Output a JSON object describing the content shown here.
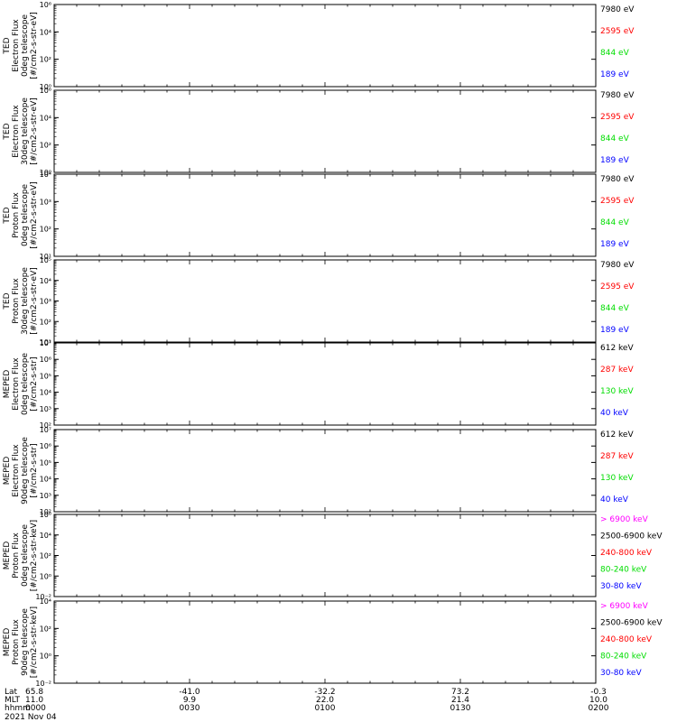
{
  "chart_data": {
    "type": "line",
    "y_scale": "log",
    "date": "2021 Nov 04",
    "time_ticks": [
      "0000",
      "0030",
      "0100",
      "0130",
      "0200"
    ],
    "ephemeris": {
      "row_labels": [
        "Lat",
        "MLT",
        "hhmm"
      ],
      "lat": [
        "65.8",
        "-41.0",
        "-32.2",
        "73.2",
        "-0.3"
      ],
      "mlt": [
        "11.0",
        "9.9",
        "22.0",
        "21.4",
        "10.0"
      ]
    },
    "panels": [
      {
        "ylabel": [
          "TED",
          "Electron Flux",
          "0deg telescope",
          "[#/cm2-s-str-eV]"
        ],
        "y_exponents": [
          0,
          2,
          4,
          6
        ],
        "legend": [
          {
            "label": "7980 eV",
            "color": "#000000"
          },
          {
            "label": "2595 eV",
            "color": "#ff0000"
          },
          {
            "label": "844 eV",
            "color": "#00dd00"
          },
          {
            "label": "189 eV",
            "color": "#0000ff"
          }
        ]
      },
      {
        "ylabel": [
          "TED",
          "Electron Flux",
          "30deg telescope",
          "[#/cm2-s-str-eV]"
        ],
        "y_exponents": [
          0,
          2,
          4,
          6
        ],
        "legend": [
          {
            "label": "7980 eV",
            "color": "#000000"
          },
          {
            "label": "2595 eV",
            "color": "#ff0000"
          },
          {
            "label": "844 eV",
            "color": "#00dd00"
          },
          {
            "label": "189 eV",
            "color": "#0000ff"
          }
        ]
      },
      {
        "ylabel": [
          "TED",
          "Proton Flux",
          "0deg telescope",
          "[#/cm2-s-str-eV]"
        ],
        "y_exponents": [
          1,
          2,
          3,
          4
        ],
        "legend": [
          {
            "label": "7980 eV",
            "color": "#000000"
          },
          {
            "label": "2595 eV",
            "color": "#ff0000"
          },
          {
            "label": "844 eV",
            "color": "#00dd00"
          },
          {
            "label": "189 eV",
            "color": "#0000ff"
          }
        ]
      },
      {
        "ylabel": [
          "TED",
          "Proton Flux",
          "30deg telescope",
          "[#/cm2-s-str-eV]"
        ],
        "y_exponents": [
          1,
          2,
          3,
          4,
          5
        ],
        "legend": [
          {
            "label": "7980 eV",
            "color": "#000000"
          },
          {
            "label": "2595 eV",
            "color": "#ff0000"
          },
          {
            "label": "844 eV",
            "color": "#00dd00"
          },
          {
            "label": "189 eV",
            "color": "#0000ff"
          }
        ]
      },
      {
        "ylabel": [
          "MEPED",
          "Electron Flux",
          "0deg telescope",
          "[#/cm2-s-str]"
        ],
        "y_exponents": [
          2,
          3,
          4,
          5,
          6,
          7
        ],
        "legend": [
          {
            "label": "612 keV",
            "color": "#000000"
          },
          {
            "label": "287 keV",
            "color": "#ff0000"
          },
          {
            "label": "130 keV",
            "color": "#00dd00"
          },
          {
            "label": "40 keV",
            "color": "#0000ff"
          }
        ]
      },
      {
        "ylabel": [
          "MEPED",
          "Electron Flux",
          "90deg telescope",
          "[#/cm2-s-str]"
        ],
        "y_exponents": [
          2,
          3,
          4,
          5,
          6,
          7
        ],
        "legend": [
          {
            "label": "612 keV",
            "color": "#000000"
          },
          {
            "label": "287 keV",
            "color": "#ff0000"
          },
          {
            "label": "130 keV",
            "color": "#00dd00"
          },
          {
            "label": "40 keV",
            "color": "#0000ff"
          }
        ]
      },
      {
        "ylabel": [
          "MEPED",
          "Proton Flux",
          "0deg telescope",
          "[#/cm2-s-str-keV]"
        ],
        "y_exponents": [
          -2,
          0,
          2,
          4,
          6
        ],
        "legend": [
          {
            "label": "> 6900 keV",
            "color": "#ff00ff"
          },
          {
            "label": "2500-6900 keV",
            "color": "#000000"
          },
          {
            "label": "240-800 keV",
            "color": "#ff0000"
          },
          {
            "label": "80-240 keV",
            "color": "#00dd00"
          },
          {
            "label": "30-80 keV",
            "color": "#0000ff"
          }
        ]
      },
      {
        "ylabel": [
          "MEPED",
          "Proton Flux",
          "90deg telescope",
          "[#/cm2-s-str-keV]"
        ],
        "y_exponents": [
          -2,
          0,
          2,
          4
        ],
        "legend": [
          {
            "label": "> 6900 keV",
            "color": "#ff00ff"
          },
          {
            "label": "2500-6900 keV",
            "color": "#000000"
          },
          {
            "label": "240-800 keV",
            "color": "#ff0000"
          },
          {
            "label": "80-240 keV",
            "color": "#00dd00"
          },
          {
            "label": "30-80 keV",
            "color": "#0000ff"
          }
        ]
      }
    ]
  }
}
